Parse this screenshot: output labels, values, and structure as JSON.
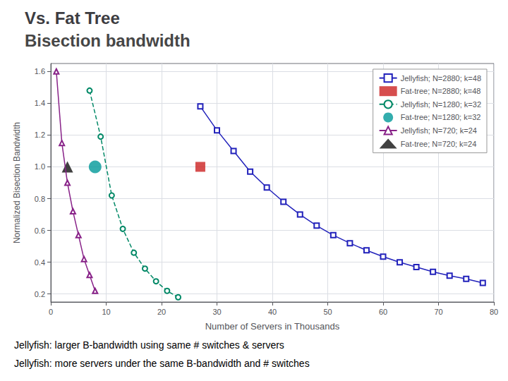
{
  "chart_data": {
    "type": "line",
    "title": "Vs. Fat Tree",
    "subtitle": "Bisection bandwidth",
    "annotations": [
      "Jellyfish: larger B-bandwidth using same # switches & servers",
      "Jellyfish: more servers under the same B-bandwidth and # switches"
    ],
    "xlabel": "Number of Servers in Thousands",
    "ylabel": "Normalized Bisection Bandwidth",
    "xlim": [
      0,
      80
    ],
    "ylim": [
      0.15,
      1.65
    ],
    "xticks": [
      0,
      10,
      20,
      30,
      40,
      50,
      60,
      70,
      80
    ],
    "yticks": [
      0.2,
      0.4,
      0.6,
      0.8,
      {
        "value": 1.0,
        "label": "1.0"
      },
      1.2,
      1.4,
      1.6
    ],
    "grid": true,
    "legend": "upper right",
    "series": [
      {
        "name": "Jellyfish; N=2880; k=48",
        "type": "line",
        "color": "#2222bb",
        "marker": "square",
        "line_style": "solid",
        "x": [
          27,
          30,
          33,
          36,
          39,
          42,
          45,
          48,
          51,
          54,
          57,
          60,
          63,
          66,
          69,
          72,
          75,
          78
        ],
        "values": [
          1.38,
          1.23,
          1.1,
          0.97,
          0.87,
          0.78,
          0.7,
          0.63,
          0.57,
          0.52,
          0.475,
          0.435,
          0.4,
          0.37,
          0.34,
          0.315,
          0.295,
          0.27
        ]
      },
      {
        "name": "Fat-tree; N=2880; k=48",
        "type": "scatter",
        "color": "#cc2222",
        "marker": "square",
        "x": [
          27
        ],
        "values": [
          1.0
        ]
      },
      {
        "name": "Jellyfish; N=1280; k=32",
        "type": "line",
        "color": "#008866",
        "marker": "circle",
        "line_style": "dashed",
        "x": [
          7,
          9,
          11,
          13,
          15,
          17,
          19,
          21,
          23
        ],
        "values": [
          1.48,
          1.19,
          0.82,
          0.61,
          0.46,
          0.36,
          0.28,
          0.22,
          0.18
        ]
      },
      {
        "name": "Fat-tree; N=1280; k=32",
        "type": "scatter",
        "color": "#009999",
        "marker": "circle",
        "x": [
          8
        ],
        "values": [
          1.0
        ]
      },
      {
        "name": "Jellyfish; N=720; k=24",
        "type": "line",
        "color": "#882288",
        "marker": "triangle",
        "line_style": "solid",
        "x": [
          1,
          2,
          3,
          4,
          5,
          6,
          7,
          8
        ],
        "values": [
          1.6,
          1.15,
          0.9,
          0.72,
          0.57,
          0.42,
          0.32,
          0.22
        ]
      },
      {
        "name": "Fat-tree; N=720; k=24",
        "type": "scatter",
        "color": "#111111",
        "marker": "triangle",
        "x": [
          3
        ],
        "values": [
          1.0
        ]
      }
    ]
  }
}
